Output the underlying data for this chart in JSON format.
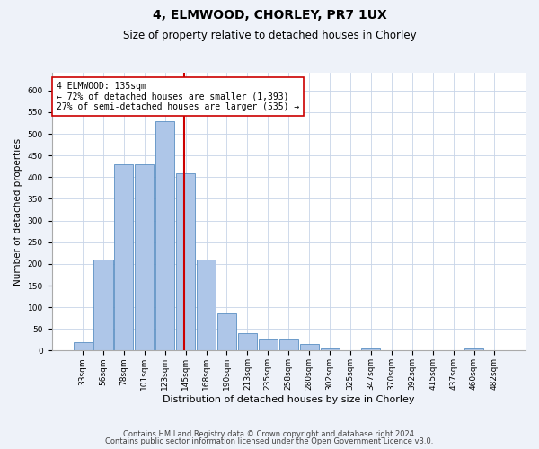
{
  "title1": "4, ELMWOOD, CHORLEY, PR7 1UX",
  "title2": "Size of property relative to detached houses in Chorley",
  "xlabel": "Distribution of detached houses by size in Chorley",
  "ylabel": "Number of detached properties",
  "bin_labels": [
    "33sqm",
    "56sqm",
    "78sqm",
    "101sqm",
    "123sqm",
    "145sqm",
    "168sqm",
    "190sqm",
    "213sqm",
    "235sqm",
    "258sqm",
    "280sqm",
    "302sqm",
    "325sqm",
    "347sqm",
    "370sqm",
    "392sqm",
    "415sqm",
    "437sqm",
    "460sqm",
    "482sqm"
  ],
  "bar_heights": [
    20,
    210,
    430,
    430,
    530,
    410,
    210,
    85,
    40,
    25,
    25,
    15,
    5,
    0,
    5,
    0,
    0,
    0,
    0,
    5,
    0
  ],
  "bar_color": "#aec6e8",
  "bar_edgecolor": "#5a8fc2",
  "vline_color": "#cc0000",
  "vline_x_index": 4.91,
  "annotation_text": "4 ELMWOOD: 135sqm\n← 72% of detached houses are smaller (1,393)\n27% of semi-detached houses are larger (535) →",
  "annotation_box_color": "#ffffff",
  "annotation_box_edgecolor": "#cc0000",
  "ylim": [
    0,
    640
  ],
  "yticks": [
    0,
    50,
    100,
    150,
    200,
    250,
    300,
    350,
    400,
    450,
    500,
    550,
    600
  ],
  "footer1": "Contains HM Land Registry data © Crown copyright and database right 2024.",
  "footer2": "Contains public sector information licensed under the Open Government Licence v3.0.",
  "background_color": "#eef2f9",
  "axes_bg_color": "#ffffff",
  "title1_fontsize": 10,
  "title2_fontsize": 8.5,
  "xlabel_fontsize": 8,
  "ylabel_fontsize": 7.5,
  "tick_fontsize": 6.5,
  "annotation_fontsize": 7,
  "footer_fontsize": 6
}
